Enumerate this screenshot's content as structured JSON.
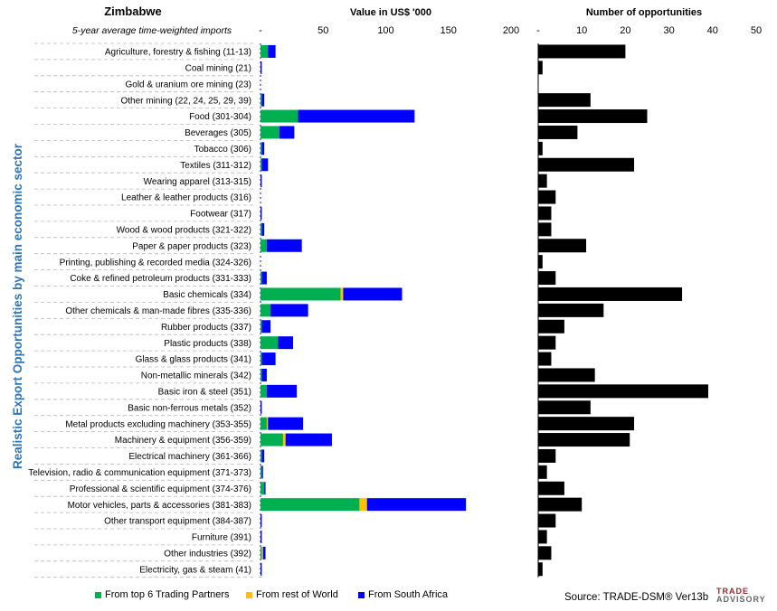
{
  "country": "Zimbabwe",
  "subtitle": "5-year average time-weighted imports",
  "vertical_title": "Realistic Export Opportunities by main economic sector",
  "source": "Source: TRADE-DSM®  Ver13b",
  "logo": {
    "line1": "TRADE",
    "line2": "ADVISORY"
  },
  "colors": {
    "top6": "#00b050",
    "rest": "#ffc000",
    "sa": "#0000ff",
    "opps": "#000000",
    "title_blue": "#2e75b6"
  },
  "chart_data": [
    {
      "type": "bar",
      "orientation": "horizontal",
      "stacked": true,
      "title": "Value in US$ '000",
      "xlim": [
        0,
        200
      ],
      "xticks": [
        "-",
        "50",
        "100",
        "150",
        "200"
      ],
      "xtick_values": [
        0,
        50,
        100,
        150,
        200
      ],
      "categories": [
        "Agriculture, forestry & fishing (11-13)",
        "Coal mining (21)",
        "Gold & uranium ore mining (23)",
        "Other mining (22, 24, 25, 29, 39)",
        "Food (301-304)",
        "Beverages (305)",
        "Tobacco (306)",
        "Textiles (311-312)",
        "Wearing apparel (313-315)",
        "Leather & leather products (316)",
        "Footwear (317)",
        "Wood & wood products (321-322)",
        "Paper & paper products (323)",
        "Printing, publishing & recorded media (324-326)",
        "Coke & refined petroleum products (331-333)",
        "Basic chemicals (334)",
        "Other chemicals & man-made fibres (335-336)",
        "Rubber products (337)",
        "Plastic products (338)",
        "Glass & glass products (341)",
        "Non-metallic minerals (342)",
        "Basic iron & steel (351)",
        "Basic non-ferrous metals (352)",
        "Metal products excluding machinery (353-355)",
        "Machinery & equipment (356-359)",
        "Electrical machinery (361-366)",
        "Television, radio & communication equipment (371-373)",
        "Professional & scientific equipment (374-376)",
        "Motor vehicles, parts & accessories (381-383)",
        "Other transport equipment (384-387)",
        "Furniture (391)",
        "Other industries (392)",
        "Electricity, gas & steam (41)"
      ],
      "series": [
        {
          "name": "From top 6 Trading Partners",
          "values": [
            6,
            0,
            0,
            1,
            30,
            15,
            1,
            1,
            0,
            0,
            0,
            1,
            5,
            0,
            1,
            64,
            8,
            1,
            14,
            1,
            1,
            5,
            0,
            5,
            18,
            1,
            1,
            3,
            79,
            0,
            0,
            1,
            0
          ]
        },
        {
          "name": "From rest of World",
          "values": [
            0,
            0,
            0,
            0,
            0,
            0,
            0,
            0,
            0,
            0,
            0,
            0,
            0,
            0,
            0,
            2,
            0,
            0,
            0,
            0,
            0,
            0,
            0,
            1,
            2,
            0,
            0,
            0,
            6,
            0,
            0,
            1,
            0
          ]
        },
        {
          "name": "From South Africa",
          "values": [
            6,
            1,
            0,
            2,
            93,
            12,
            2,
            5,
            1,
            0,
            1,
            2,
            28,
            0,
            4,
            47,
            30,
            7,
            12,
            11,
            4,
            24,
            1,
            28,
            37,
            2,
            1,
            1,
            79,
            1,
            1,
            2,
            1
          ]
        }
      ]
    },
    {
      "type": "bar",
      "orientation": "horizontal",
      "title": "Number of opportunities",
      "xlim": [
        0,
        50
      ],
      "xticks": [
        "-",
        "10",
        "20",
        "30",
        "40",
        "50"
      ],
      "xtick_values": [
        0,
        10,
        20,
        30,
        40,
        50
      ],
      "series": [
        {
          "name": "",
          "values": [
            20,
            1,
            0,
            12,
            25,
            9,
            1,
            22,
            2,
            4,
            3,
            3,
            11,
            1,
            4,
            33,
            15,
            6,
            4,
            3,
            13,
            39,
            12,
            22,
            21,
            4,
            2,
            6,
            10,
            4,
            2,
            3,
            1
          ]
        }
      ]
    }
  ]
}
